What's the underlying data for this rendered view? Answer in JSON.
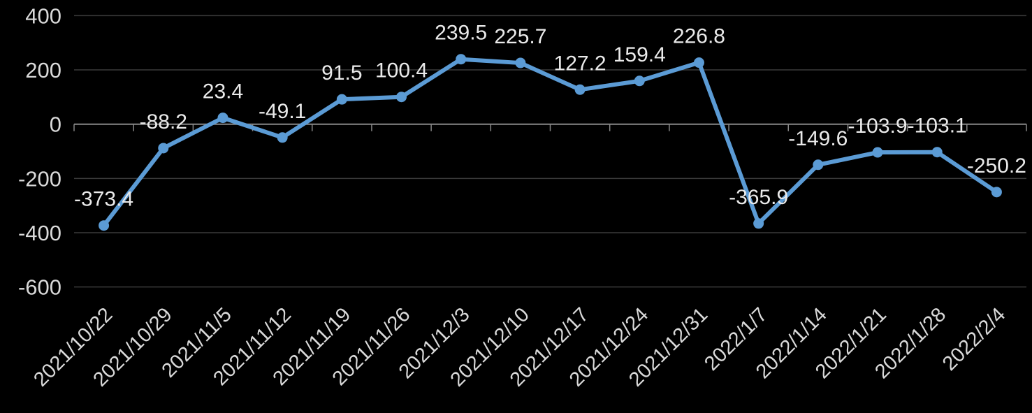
{
  "chart_data": {
    "type": "line",
    "title": "",
    "xlabel": "",
    "ylabel": "",
    "categories": [
      "2021/10/22",
      "2021/10/29",
      "2021/11/5",
      "2021/11/12",
      "2021/11/19",
      "2021/11/26",
      "2021/12/3",
      "2021/12/10",
      "2021/12/17",
      "2021/12/24",
      "2021/12/31",
      "2022/1/7",
      "2022/1/14",
      "2022/1/21",
      "2022/1/28",
      "2022/2/4"
    ],
    "values": [
      -373.4,
      -88.2,
      23.4,
      -49.1,
      91.5,
      100.4,
      239.5,
      225.7,
      127.2,
      159.4,
      226.8,
      -365.9,
      -149.6,
      -103.9,
      -103.1,
      -250.2
    ],
    "data_labels": [
      "-373.4",
      "-88.2",
      "23.4",
      "-49.1",
      "91.5",
      "100.4",
      "239.5",
      "225.7",
      "127.2",
      "159.4",
      "226.8",
      "-365.9",
      "-149.6",
      "-103.9",
      "-103.1",
      "-250.2"
    ],
    "ylim": [
      -600,
      400
    ],
    "yticks": [
      400,
      200,
      0,
      -200,
      -400,
      -600
    ],
    "ytick_labels": [
      "400",
      "200",
      "0",
      "-200",
      "-400",
      "-600"
    ],
    "grid": true,
    "legend": false,
    "marker": "circle",
    "colors": {
      "line": "#5B9BD5",
      "background": "#000000",
      "gridline": "#3a3a3a",
      "axis": "#878787",
      "data_label": "#eaeaea",
      "axis_label": "#d9d9d9"
    }
  }
}
